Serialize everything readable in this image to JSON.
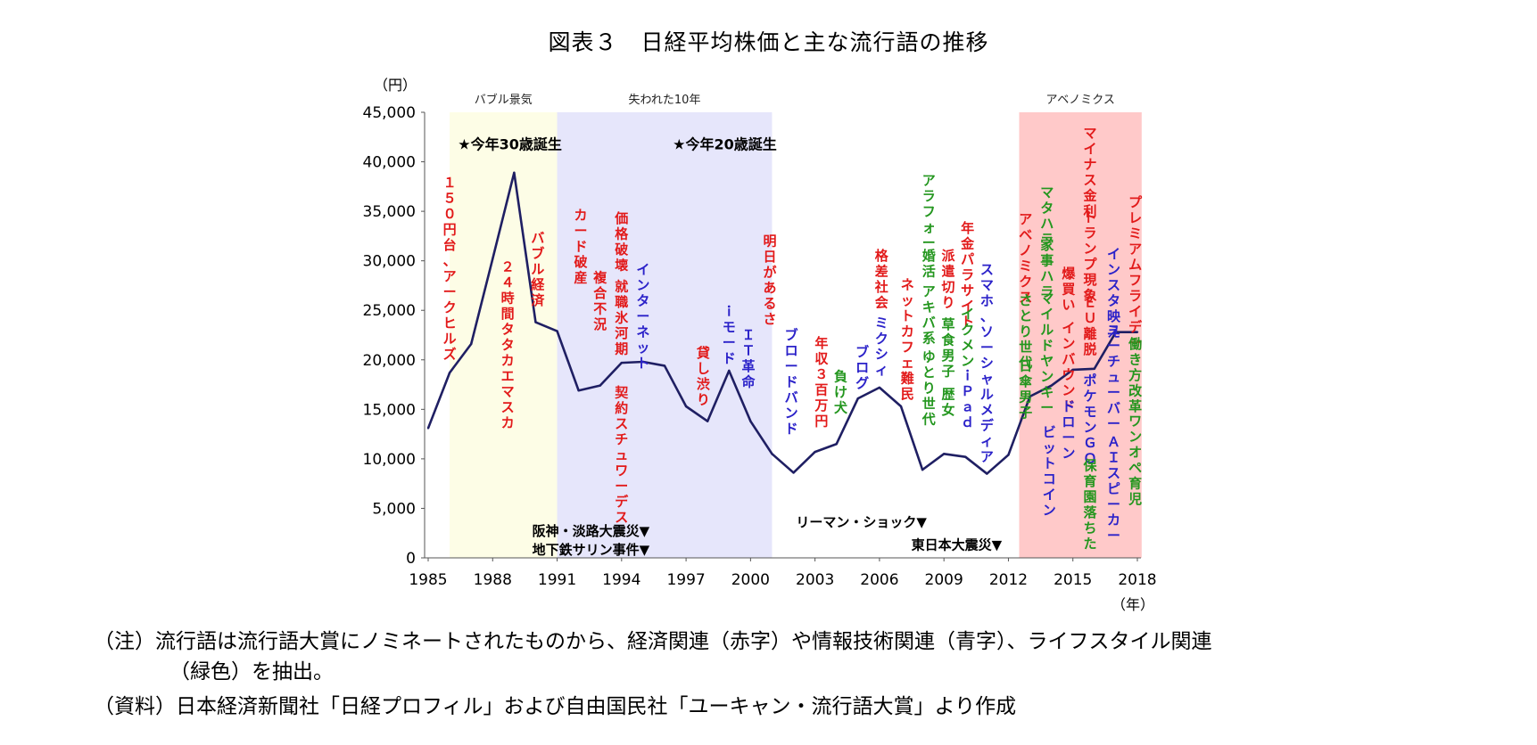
{
  "title": "図表３　日経平均株価と主な流行語の推移",
  "notes": {
    "note_line1": "（注）流行語は流行語大賞にノミネートされたものから、経済関連（赤字）や情報技術関連（青字）、ライフスタイル関連",
    "note_line2": "（緑色）を抽出。",
    "source": "（資料）日本経済新聞社「日経プロフィル」および自由国民社「ユーキャン・流行語大賞」より作成"
  },
  "colors": {
    "economy": "#e21a1a",
    "tech": "#2b22c9",
    "lifestyle": "#23961e",
    "line": "#1f1f63",
    "bubble_band": "#fdfde6",
    "lost_band": "#e6e6fb",
    "abenomics_band": "#ffc9c9"
  },
  "chart_data": {
    "type": "line",
    "title": "日経平均株価と主な流行語の推移",
    "y_unit_label": "（円）",
    "x_unit_label": "（年）",
    "ylim": [
      0,
      45000
    ],
    "y_ticks": [
      "0",
      "5,000",
      "10,000",
      "15,000",
      "20,000",
      "25,000",
      "30,000",
      "35,000",
      "40,000",
      "45,000"
    ],
    "x_ticks": [
      "1985",
      "1988",
      "1991",
      "1994",
      "1997",
      "2000",
      "2003",
      "2006",
      "2009",
      "2012",
      "2015",
      "2018"
    ],
    "x": [
      1985,
      1986,
      1987,
      1988,
      1989,
      1990,
      1991,
      1992,
      1993,
      1994,
      1995,
      1996,
      1997,
      1998,
      1999,
      2000,
      2001,
      2002,
      2003,
      2004,
      2005,
      2006,
      2007,
      2008,
      2009,
      2010,
      2011,
      2012,
      2013,
      2014,
      2015,
      2016,
      2017,
      2018
    ],
    "values": [
      13100,
      18700,
      21600,
      30200,
      38900,
      23800,
      22900,
      16900,
      17400,
      19700,
      19800,
      19400,
      15300,
      13800,
      18900,
      13800,
      10500,
      8600,
      10700,
      11500,
      16100,
      17200,
      15300,
      8900,
      10500,
      10200,
      8500,
      10400,
      16300,
      17400,
      19000,
      19100,
      22800,
      22800
    ],
    "bands": [
      {
        "label": "バブル景気",
        "from": 1986.0,
        "to": 1991.0
      },
      {
        "label": "失われた10年",
        "from": 1991.0,
        "to": 2001.0
      },
      {
        "label": "アベノミクス",
        "from": 2012.5,
        "to": 2018.2
      }
    ],
    "stars": [
      {
        "text": "★今年30歳誕生",
        "x": 1988.8,
        "y": 41800
      },
      {
        "text": "★今年20歳誕生",
        "x": 1998.8,
        "y": 41800
      }
    ],
    "events": [
      {
        "text": "阪神・淡路大震災▼",
        "x": 1995.3,
        "y": 2800
      },
      {
        "text": "地下鉄サリン事件▼",
        "x": 1995.3,
        "y": 900
      },
      {
        "text": "リーマン・ショック▼",
        "x": 2008.2,
        "y": 3700
      },
      {
        "text": "東日本大震災▼",
        "x": 2011.7,
        "y": 1400
      }
    ],
    "buzzwords": [
      {
        "text": "１５０円台、アークヒルズ",
        "x": 1986.0,
        "y": 38800,
        "cat": "economy"
      },
      {
        "text": "２４時間タタカエマスカ",
        "x": 1988.7,
        "y": 30300,
        "cat": "economy"
      },
      {
        "text": "バブル経済",
        "x": 1990.1,
        "y": 33200,
        "cat": "economy"
      },
      {
        "text": "カード破産",
        "x": 1992.1,
        "y": 35500,
        "cat": "economy"
      },
      {
        "text": "複合不況",
        "x": 1993.0,
        "y": 29200,
        "cat": "economy"
      },
      {
        "text": "価格破壊",
        "x": 1994.0,
        "y": 35200,
        "cat": "economy"
      },
      {
        "text": "就職氷河期",
        "x": 1994.0,
        "y": 28300,
        "cat": "economy"
      },
      {
        "text": "契約スチュワーデス",
        "x": 1994.0,
        "y": 17600,
        "cat": "economy"
      },
      {
        "text": "インターネット",
        "x": 1995.0,
        "y": 30000,
        "cat": "tech"
      },
      {
        "text": "貸し渋り",
        "x": 1997.8,
        "y": 21600,
        "cat": "economy"
      },
      {
        "text": "ｉモード",
        "x": 1999.0,
        "y": 25800,
        "cat": "tech"
      },
      {
        "text": "ＩＴ革命",
        "x": 1999.9,
        "y": 23400,
        "cat": "tech"
      },
      {
        "text": "明日があるさ",
        "x": 2000.9,
        "y": 32900,
        "cat": "economy"
      },
      {
        "text": "ブロードバンド",
        "x": 2001.9,
        "y": 23400,
        "cat": "tech"
      },
      {
        "text": "年収３百万円",
        "x": 2003.3,
        "y": 22600,
        "cat": "economy"
      },
      {
        "text": "負け犬",
        "x": 2004.2,
        "y": 19200,
        "cat": "lifestyle"
      },
      {
        "text": "ブログ",
        "x": 2005.2,
        "y": 21700,
        "cat": "tech"
      },
      {
        "text": "ミクシィ",
        "x": 2006.1,
        "y": 24600,
        "cat": "tech"
      },
      {
        "text": "格差社会",
        "x": 2006.1,
        "y": 31400,
        "cat": "economy"
      },
      {
        "text": "ネットカフェ難民",
        "x": 2007.3,
        "y": 28500,
        "cat": "economy"
      },
      {
        "text": "アラフォー",
        "x": 2008.3,
        "y": 39000,
        "cat": "lifestyle"
      },
      {
        "text": "婚活",
        "x": 2008.3,
        "y": 31400,
        "cat": "lifestyle"
      },
      {
        "text": "アキバ系",
        "x": 2008.3,
        "y": 27800,
        "cat": "lifestyle"
      },
      {
        "text": "ゆとり世代",
        "x": 2008.3,
        "y": 21200,
        "cat": "lifestyle"
      },
      {
        "text": "派遣切り",
        "x": 2009.2,
        "y": 31400,
        "cat": "economy"
      },
      {
        "text": "草食男子",
        "x": 2009.2,
        "y": 24500,
        "cat": "lifestyle"
      },
      {
        "text": "歴女",
        "x": 2009.2,
        "y": 17400,
        "cat": "lifestyle"
      },
      {
        "text": "年金パラサイト",
        "x": 2010.1,
        "y": 34200,
        "cat": "economy"
      },
      {
        "text": "イクメン",
        "x": 2010.1,
        "y": 25500,
        "cat": "lifestyle"
      },
      {
        "text": "ｉＰａｄ",
        "x": 2010.1,
        "y": 19300,
        "cat": "tech"
      },
      {
        "text": "スマホ、ソーシャルメディア",
        "x": 2011.0,
        "y": 30000,
        "cat": "tech"
      },
      {
        "text": "アベノミクス",
        "x": 2012.8,
        "y": 35100,
        "cat": "economy"
      },
      {
        "text": "さとり世代",
        "x": 2012.8,
        "y": 26900,
        "cat": "lifestyle"
      },
      {
        "text": "日傘男子",
        "x": 2012.8,
        "y": 20300,
        "cat": "lifestyle"
      },
      {
        "text": "マタハラ",
        "x": 2013.8,
        "y": 37800,
        "cat": "lifestyle"
      },
      {
        "text": "家事ハラ",
        "x": 2013.8,
        "y": 32500,
        "cat": "lifestyle"
      },
      {
        "text": "マイルドヤンキー",
        "x": 2013.8,
        "y": 27100,
        "cat": "lifestyle"
      },
      {
        "text": "ビットコイン",
        "x": 2013.9,
        "y": 13600,
        "cat": "tech"
      },
      {
        "text": "爆買い",
        "x": 2014.8,
        "y": 29600,
        "cat": "economy"
      },
      {
        "text": "インバウンド",
        "x": 2014.8,
        "y": 24100,
        "cat": "economy"
      },
      {
        "text": "ドローン",
        "x": 2014.8,
        "y": 16200,
        "cat": "tech"
      },
      {
        "text": "マイナス金利",
        "x": 2015.8,
        "y": 43800,
        "cat": "economy"
      },
      {
        "text": "トランプ現象",
        "x": 2015.8,
        "y": 35300,
        "cat": "economy"
      },
      {
        "text": "ＥＵ離脱",
        "x": 2015.8,
        "y": 26700,
        "cat": "economy"
      },
      {
        "text": "ポケモンＧＯ",
        "x": 2015.8,
        "y": 18800,
        "cat": "tech"
      },
      {
        "text": "保育園落ちた",
        "x": 2015.8,
        "y": 10200,
        "cat": "lifestyle"
      },
      {
        "text": "インスタ映え",
        "x": 2016.9,
        "y": 31600,
        "cat": "tech"
      },
      {
        "text": "ユーチューバー",
        "x": 2016.9,
        "y": 23900,
        "cat": "tech"
      },
      {
        "text": "ＡＩスピーカー",
        "x": 2016.9,
        "y": 12600,
        "cat": "tech"
      },
      {
        "text": "プレミアムフライデー",
        "x": 2017.9,
        "y": 36800,
        "cat": "economy"
      },
      {
        "text": "働き方改革",
        "x": 2017.9,
        "y": 22500,
        "cat": "lifestyle"
      },
      {
        "text": "ワンオペ育児",
        "x": 2017.9,
        "y": 14700,
        "cat": "lifestyle"
      }
    ]
  }
}
